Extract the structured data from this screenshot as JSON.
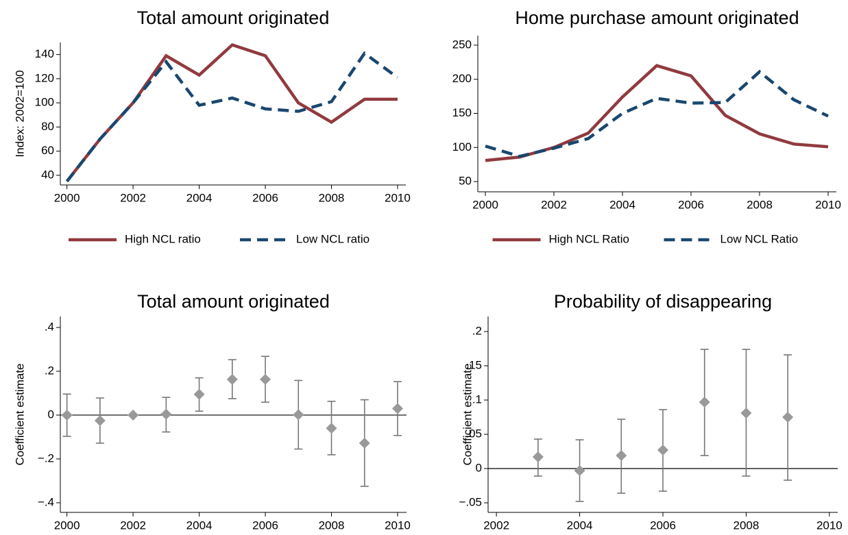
{
  "chart_data": [
    {
      "type": "line",
      "title": "Total amount originated",
      "ylabel": "Index: 2002=100",
      "x": [
        2000,
        2001,
        2002,
        2003,
        2004,
        2005,
        2006,
        2007,
        2008,
        2009,
        2010
      ],
      "series": [
        {
          "name": "High NCL ratio",
          "color": "#903a3f",
          "dash": false,
          "values": [
            35,
            70,
            100,
            139,
            123,
            148,
            139,
            100,
            84,
            103,
            103
          ]
        },
        {
          "name": "Low NCL ratio",
          "color": "#1a476f",
          "dash": true,
          "values": [
            35,
            70,
            100,
            134,
            98,
            104,
            95,
            93,
            101,
            141,
            121
          ]
        }
      ],
      "xlim": [
        1999.8,
        2010.25
      ],
      "xticks": [
        2000,
        2002,
        2004,
        2006,
        2008,
        2010
      ],
      "ylim": [
        32,
        150
      ],
      "yticks": [
        40,
        60,
        80,
        100,
        120,
        140
      ]
    },
    {
      "type": "line",
      "title": "Home purchase amount originated",
      "x": [
        2000,
        2001,
        2002,
        2003,
        2004,
        2005,
        2006,
        2007,
        2008,
        2009,
        2010
      ],
      "series": [
        {
          "name": "High NCL Ratio",
          "color": "#903a3f",
          "dash": false,
          "values": [
            81,
            86,
            100,
            121,
            174,
            220,
            205,
            147,
            120,
            105,
            101
          ]
        },
        {
          "name": "Low NCL Ratio",
          "color": "#1a476f",
          "dash": true,
          "values": [
            102,
            87,
            99,
            113,
            150,
            172,
            165,
            166,
            211,
            170,
            146
          ]
        }
      ],
      "xlim": [
        1999.78,
        2010.24
      ],
      "xticks": [
        2000,
        2002,
        2004,
        2006,
        2008,
        2010
      ],
      "ylim": [
        35,
        264
      ],
      "yticks": [
        50,
        100,
        150,
        200,
        250
      ]
    },
    {
      "type": "errorbar",
      "title": "Total amount originated",
      "ylabel": "Coefficient estimate",
      "x": [
        2000,
        2001,
        2002,
        2003,
        2004,
        2005,
        2006,
        2007,
        2008,
        2009,
        2010
      ],
      "values": [
        0,
        -0.025,
        0,
        0.004,
        0.095,
        0.163,
        0.163,
        0.002,
        -0.06,
        -0.128,
        0.03
      ],
      "lower": [
        -0.097,
        -0.128,
        null,
        -0.077,
        0.018,
        0.075,
        0.059,
        -0.155,
        -0.181,
        -0.325,
        -0.093
      ],
      "upper": [
        0.096,
        0.078,
        null,
        0.081,
        0.17,
        0.253,
        0.268,
        0.158,
        0.063,
        0.07,
        0.153
      ],
      "color": "#999999",
      "bar_color": "#777777",
      "yline": 0,
      "xlim": [
        1999.8,
        2010.27
      ],
      "xticks": [
        2000,
        2002,
        2004,
        2006,
        2008,
        2010
      ],
      "ylim": [
        -0.444,
        0.45
      ],
      "yticks": [
        {
          "value": -0.4,
          "label": "−.4"
        },
        {
          "value": -0.2,
          "label": "−.2"
        },
        0,
        {
          "value": 0.2,
          "label": ".2"
        },
        {
          "value": 0.4,
          "label": ".4"
        }
      ]
    },
    {
      "type": "errorbar",
      "title": "Probability of disappearing",
      "ylabel": "Coefficient estimate",
      "x": [
        2003,
        2004,
        2005,
        2006,
        2007,
        2008,
        2009
      ],
      "values": [
        0.017,
        -0.003,
        0.019,
        0.027,
        0.097,
        0.081,
        0.075
      ],
      "lower": [
        -0.011,
        -0.048,
        -0.036,
        -0.033,
        0.019,
        -0.011,
        -0.017
      ],
      "upper": [
        0.043,
        0.042,
        0.072,
        0.086,
        0.174,
        0.174,
        0.166
      ],
      "color": "#999999",
      "bar_color": "#777777",
      "yline": 0,
      "xlim": [
        2001.8,
        2010.2
      ],
      "xticks": [
        2002,
        2004,
        2006,
        2008,
        2010
      ],
      "ylim": [
        -0.064,
        0.222
      ],
      "yticks": [
        {
          "value": -0.05,
          "label": "−.05"
        },
        0,
        {
          "value": 0.05,
          "label": ".05"
        },
        {
          "value": 0.1,
          "label": ".1"
        },
        {
          "value": 0.15,
          "label": ".15"
        },
        {
          "value": 0.2,
          "label": ".2"
        }
      ]
    }
  ]
}
